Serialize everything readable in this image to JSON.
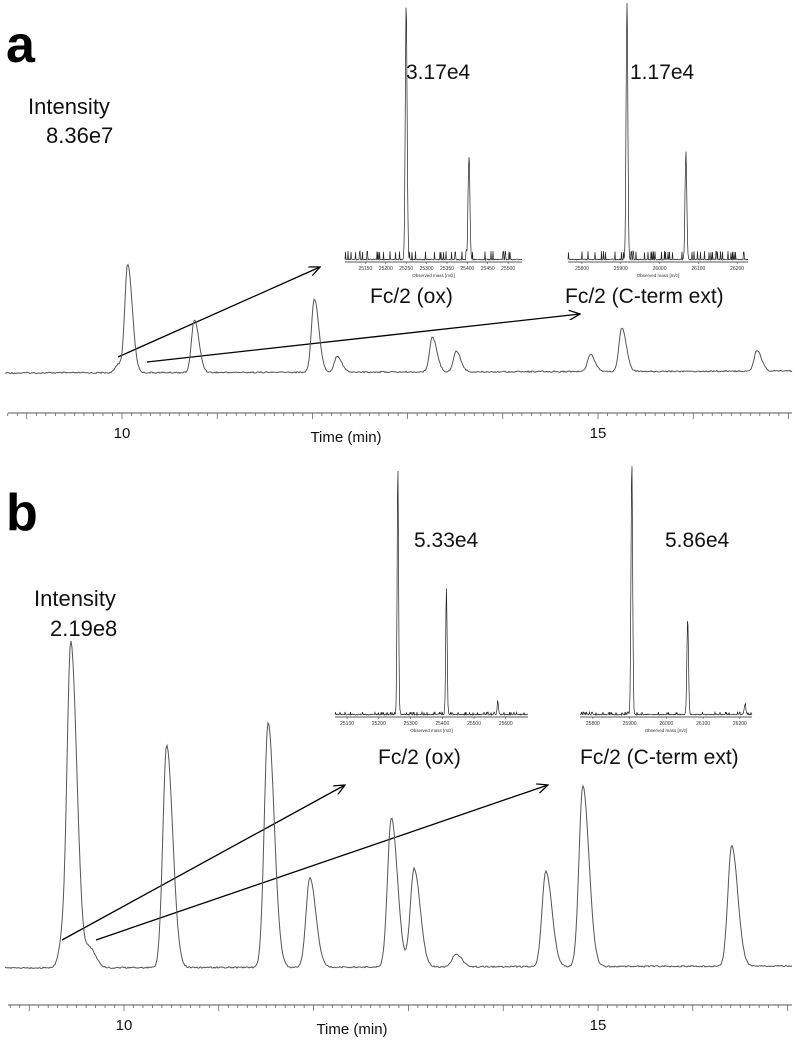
{
  "chart_data": [
    {
      "type": "line",
      "panel": "a",
      "xlabel": "Time (min)",
      "xticks": [
        10,
        15
      ],
      "xlim": [
        8.8,
        17.0
      ],
      "intensity_label": "Intensity",
      "intensity_max": "8.36e7",
      "peaks": {
        "time_min": [
          9.96,
          10.06,
          10.76,
          12.02,
          12.26,
          13.26,
          13.51,
          14.92,
          15.25,
          16.67
        ],
        "relative_intensity": [
          8,
          100,
          49,
          68,
          15,
          32,
          19,
          16,
          40,
          19
        ]
      },
      "insets": [
        {
          "label": "Fc/2 (ox)",
          "intensity": "3.17e4",
          "xlabel": "Observed mass [m/z]",
          "xlim": [
            25100,
            25534
          ],
          "xticks": [
            25150,
            25200,
            25250,
            25300,
            25350,
            25400,
            25450,
            25500
          ],
          "peaks": {
            "mass": [
              25250,
              25404
            ],
            "relative_intensity": [
              100,
              40
            ]
          }
        },
        {
          "label": "Fc/2 (C-term ext)",
          "intensity": "1.17e4",
          "xlabel": "Observed mass [m/z]",
          "xlim": [
            25764,
            26228
          ],
          "xticks": [
            25800,
            25900,
            26000,
            26100,
            26200
          ],
          "peaks": {
            "mass": [
              25916,
              26068
            ],
            "relative_intensity": [
              100,
              42
            ]
          }
        }
      ]
    },
    {
      "type": "line",
      "panel": "b",
      "xlabel": "Time (min)",
      "xticks": [
        10,
        15
      ],
      "xlim": [
        8.8,
        17.0
      ],
      "intensity_label": "Intensity",
      "intensity_max": "2.19e8",
      "peaks": {
        "time_min": [
          9.35,
          9.44,
          9.64,
          10.45,
          11.52,
          11.96,
          12.82,
          13.06,
          13.5,
          14.45,
          14.84,
          16.41
        ],
        "relative_intensity": [
          8,
          100,
          6,
          70,
          77,
          28,
          47,
          31,
          4,
          30,
          57,
          38
        ]
      },
      "insets": [
        {
          "label": "Fc/2 (ox)",
          "intensity": "5.33e4",
          "xlabel": "Observed mass [m/z]",
          "xlim": [
            25062,
            25670
          ],
          "xticks": [
            25100,
            25200,
            25300,
            25400,
            25500,
            25600
          ],
          "peaks": {
            "mass": [
              25260,
              25413,
              25575
            ],
            "relative_intensity": [
              100,
              51,
              5
            ]
          }
        },
        {
          "label": "Fc/2 (C-term ext)",
          "intensity": "5.86e4",
          "xlabel": "Observed mass [m/z]",
          "xlim": [
            25765,
            26233
          ],
          "xticks": [
            25800,
            25900,
            26000,
            26100,
            26200
          ],
          "peaks": {
            "mass": [
              25906,
              26058,
              26214
            ],
            "relative_intensity": [
              100,
              38,
              4
            ]
          }
        }
      ]
    }
  ],
  "labels": {
    "a": "a",
    "b": "b"
  }
}
